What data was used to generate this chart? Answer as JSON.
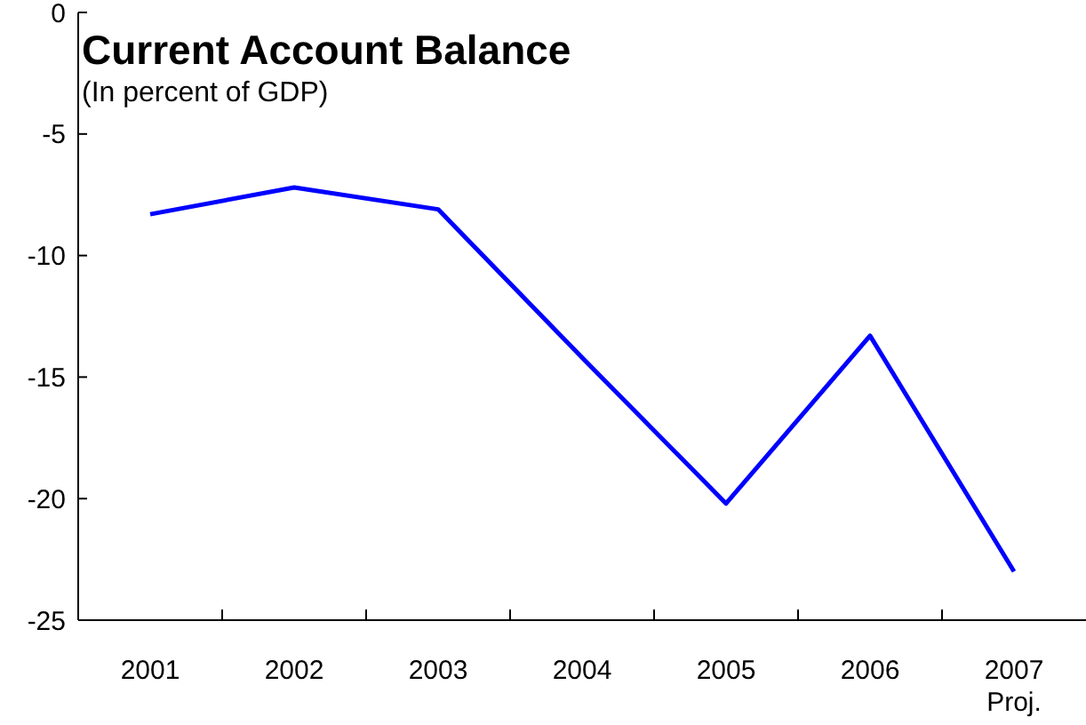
{
  "chart_data": {
    "type": "line",
    "title": "Current Account Balance",
    "subtitle": "(In percent of GDP)",
    "categories": [
      "2001",
      "2002",
      "2003",
      "2004",
      "2005",
      "2006",
      "2007\nProj."
    ],
    "series": [
      {
        "color": "#0000ff",
        "values": [
          -8.3,
          -7.2,
          -8.1,
          -14.2,
          -20.2,
          -13.3,
          -23.0
        ]
      }
    ],
    "ylim": [
      -25,
      0
    ],
    "yticks": [
      -25,
      -20,
      -15,
      -10,
      -5,
      0
    ],
    "marker": "none",
    "line_style": "solid"
  }
}
